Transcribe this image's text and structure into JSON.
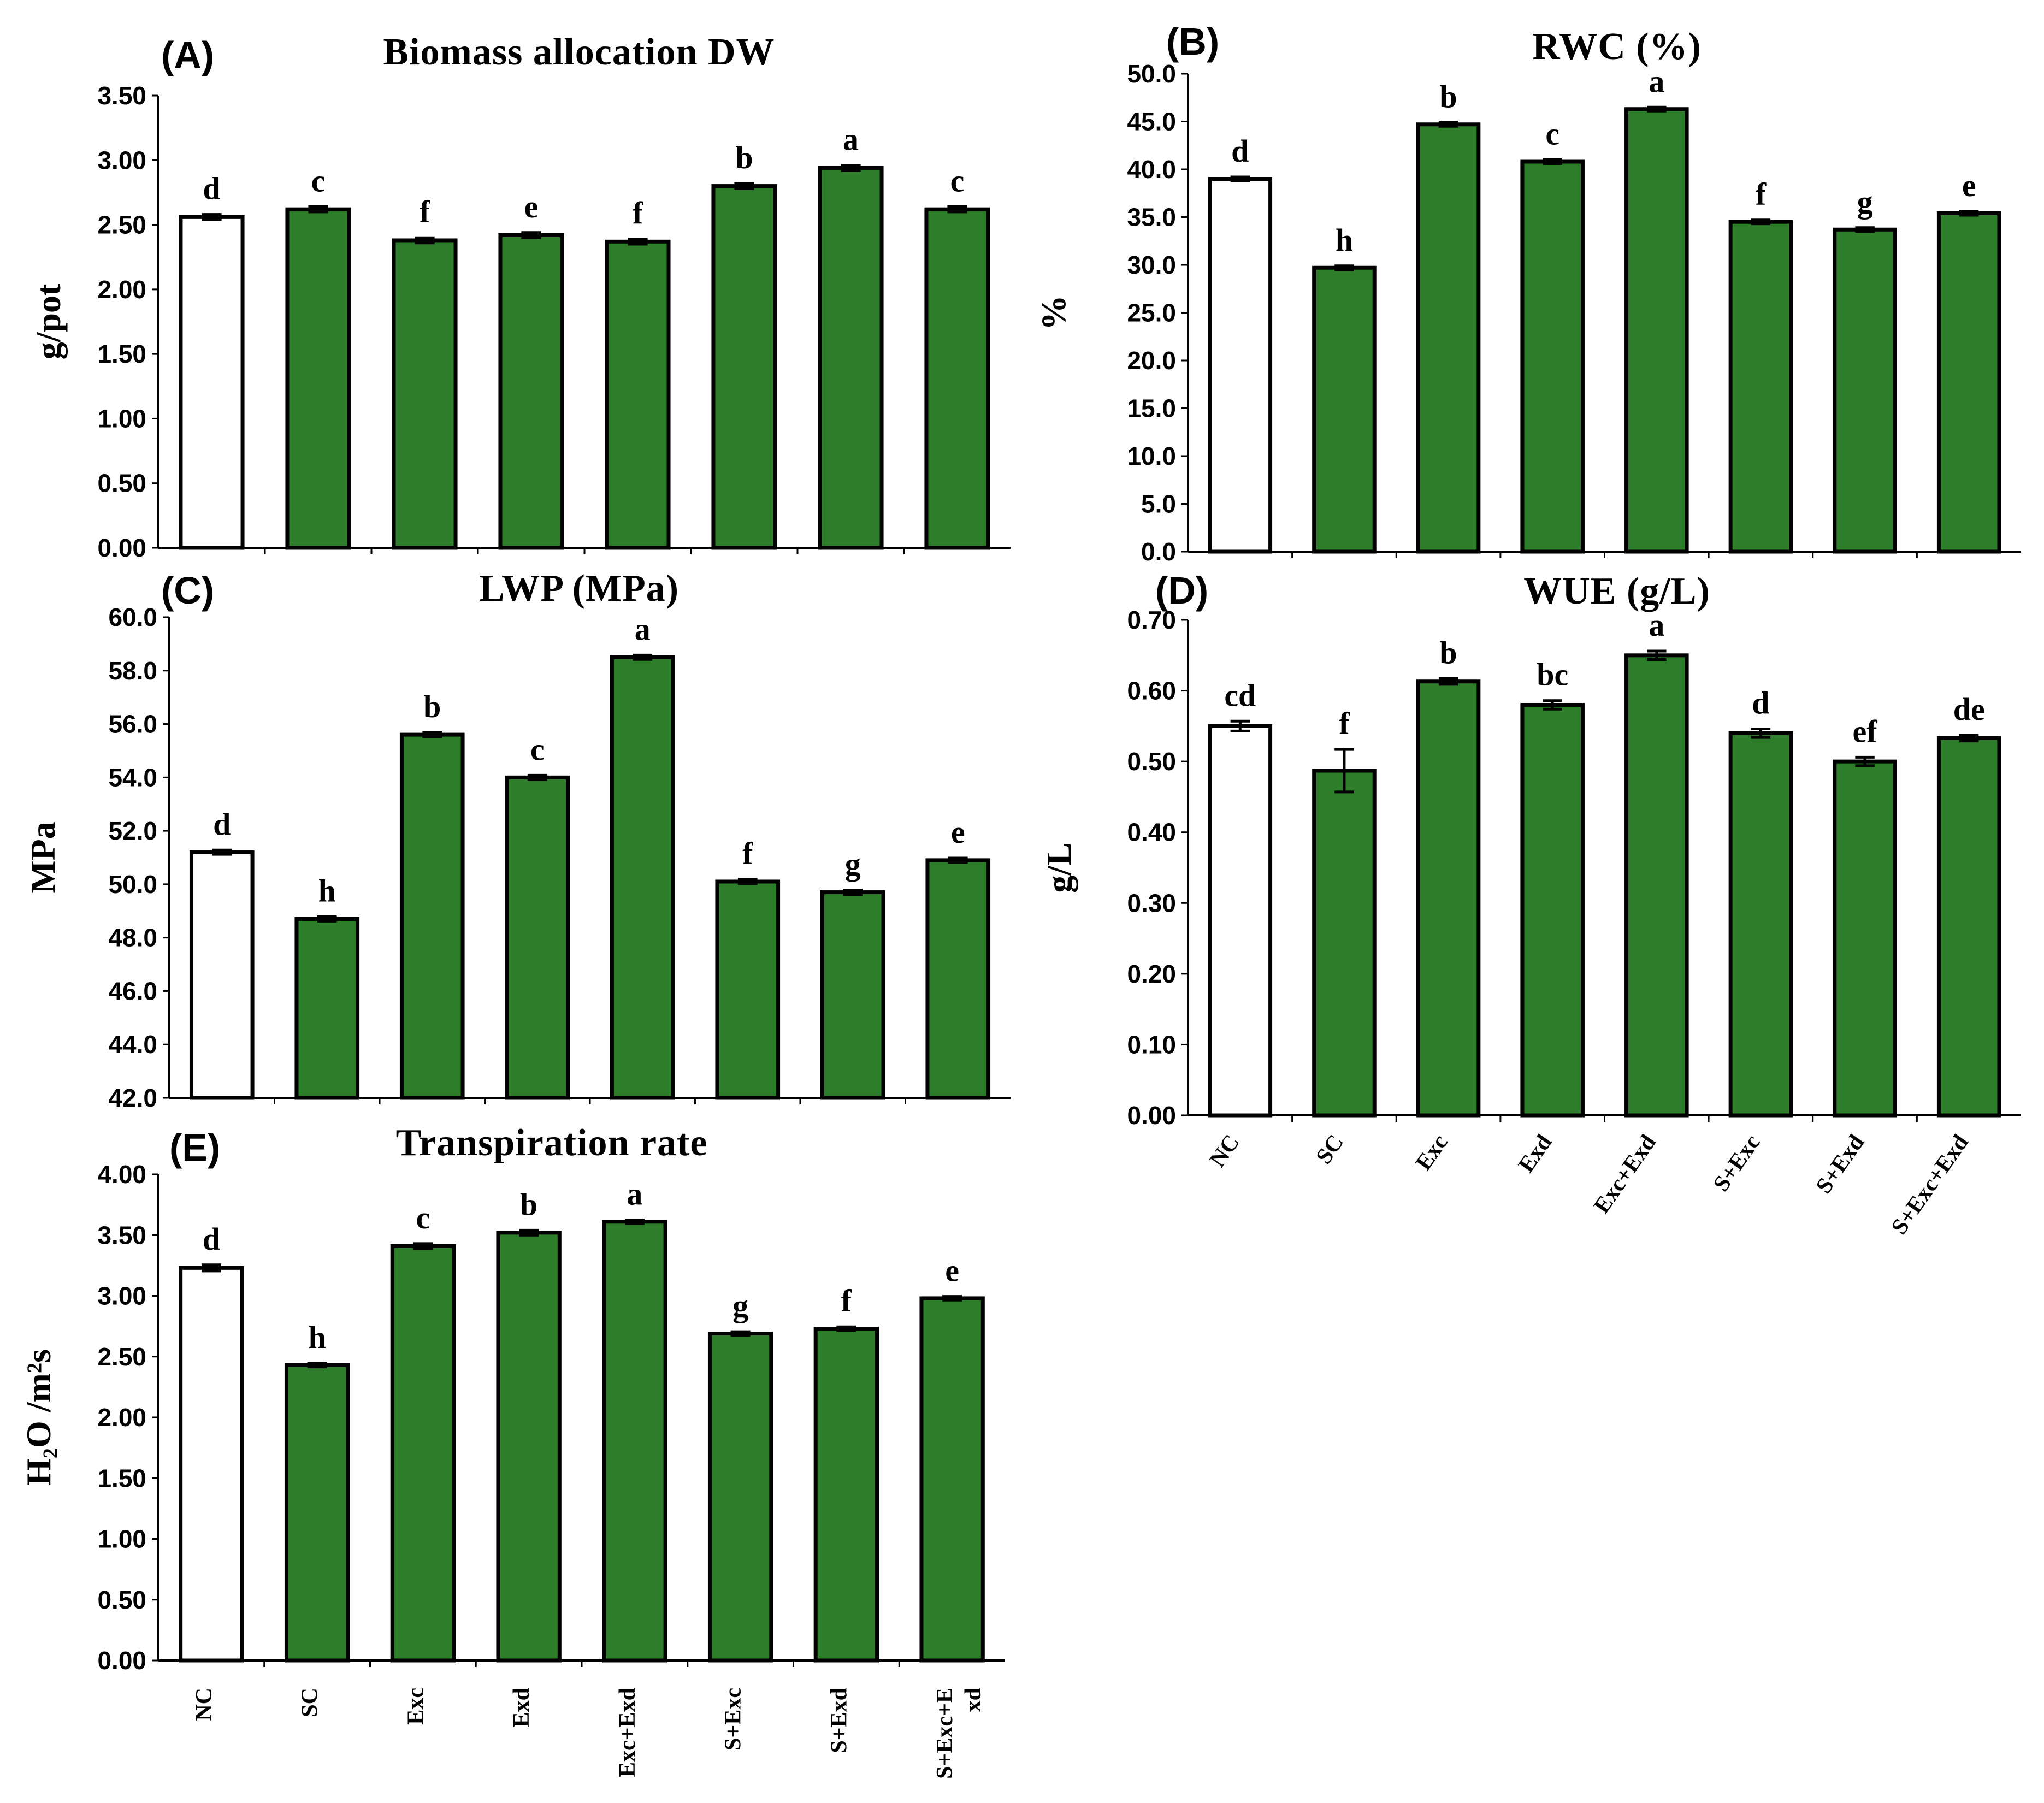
{
  "chart_data": [
    {
      "id": "A",
      "panel_label": "(A)",
      "type": "bar",
      "title": "Biomass allocation DW",
      "ylabel": "g/pot",
      "ylim": [
        0,
        3.5
      ],
      "yticks": [
        "0.00",
        "0.50",
        "1.00",
        "1.50",
        "2.00",
        "2.50",
        "3.00",
        "3.50"
      ],
      "categories": [
        "NC",
        "SC",
        "Exc",
        "Exd",
        "Exc+Exd",
        "S+Exc",
        "S+Exd",
        "S+Exc+Exd"
      ],
      "show_xlabels": false,
      "values": [
        2.56,
        2.62,
        2.38,
        2.42,
        2.37,
        2.8,
        2.94,
        2.62
      ],
      "errors": [
        0.02,
        0.02,
        0.02,
        0.02,
        0.02,
        0.02,
        0.02,
        0.02
      ],
      "letters": [
        "d",
        "c",
        "f",
        "e",
        "f",
        "b",
        "a",
        "c"
      ],
      "bar_colors": [
        "#ffffff",
        "#2e7d2a",
        "#2e7d2a",
        "#2e7d2a",
        "#2e7d2a",
        "#2e7d2a",
        "#2e7d2a",
        "#2e7d2a"
      ]
    },
    {
      "id": "B",
      "panel_label": "(B)",
      "type": "bar",
      "title": "RWC (%)",
      "ylabel": "%",
      "ylim": [
        0,
        50
      ],
      "yticks": [
        "0.0",
        "5.0",
        "10.0",
        "15.0",
        "20.0",
        "25.0",
        "30.0",
        "35.0",
        "40.0",
        "45.0",
        "50.0"
      ],
      "categories": [
        "NC",
        "SC",
        "Exc",
        "Exd",
        "Exc+Exd",
        "S+Exc",
        "S+Exd",
        "S+Exc+Exd"
      ],
      "show_xlabels": false,
      "values": [
        39.0,
        29.7,
        44.7,
        40.8,
        46.3,
        34.5,
        33.7,
        35.4
      ],
      "errors": [
        0.2,
        0.2,
        0.2,
        0.2,
        0.2,
        0.2,
        0.2,
        0.2
      ],
      "letters": [
        "d",
        "h",
        "b",
        "c",
        "a",
        "f",
        "g",
        "e"
      ],
      "bar_colors": [
        "#ffffff",
        "#2e7d2a",
        "#2e7d2a",
        "#2e7d2a",
        "#2e7d2a",
        "#2e7d2a",
        "#2e7d2a",
        "#2e7d2a"
      ]
    },
    {
      "id": "C",
      "panel_label": "(C)",
      "type": "bar",
      "title": "LWP (MPa)",
      "ylabel": "MPa",
      "ylim": [
        42,
        60
      ],
      "yticks": [
        "42.0",
        "44.0",
        "46.0",
        "48.0",
        "50.0",
        "52.0",
        "54.0",
        "56.0",
        "58.0",
        "60.0"
      ],
      "categories": [
        "NC",
        "SC",
        "Exc",
        "Exd",
        "Exc+Exd",
        "S+Exc",
        "S+Exd",
        "S+Exc+Exd"
      ],
      "show_xlabels": false,
      "values": [
        51.2,
        48.7,
        55.6,
        54.0,
        58.5,
        50.1,
        49.7,
        50.9
      ],
      "errors": [
        0.08,
        0.08,
        0.08,
        0.08,
        0.08,
        0.08,
        0.08,
        0.08
      ],
      "letters": [
        "d",
        "h",
        "b",
        "c",
        "a",
        "f",
        "g",
        "e"
      ],
      "bar_colors": [
        "#ffffff",
        "#2e7d2a",
        "#2e7d2a",
        "#2e7d2a",
        "#2e7d2a",
        "#2e7d2a",
        "#2e7d2a",
        "#2e7d2a"
      ]
    },
    {
      "id": "D",
      "panel_label": "(D)",
      "type": "bar",
      "title": "WUE (g/L)",
      "ylabel": "g/L",
      "ylim": [
        0,
        0.7
      ],
      "yticks": [
        "0.00",
        "0.10",
        "0.20",
        "0.30",
        "0.40",
        "0.50",
        "0.60",
        "0.70"
      ],
      "categories": [
        "NC",
        "SC",
        "Exc",
        "Exd",
        "Exc+Exd",
        "S+Exc",
        "S+Exd",
        "S+Exc+Exd"
      ],
      "show_xlabels": true,
      "values": [
        0.55,
        0.487,
        0.613,
        0.58,
        0.65,
        0.54,
        0.5,
        0.533
      ],
      "errors": [
        0.007,
        0.03,
        0.004,
        0.006,
        0.006,
        0.006,
        0.006,
        0.004
      ],
      "letters": [
        "cd",
        "f",
        "b",
        "bc",
        "a",
        "d",
        "ef",
        "de"
      ],
      "bar_colors": [
        "#ffffff",
        "#2e7d2a",
        "#2e7d2a",
        "#2e7d2a",
        "#2e7d2a",
        "#2e7d2a",
        "#2e7d2a",
        "#2e7d2a"
      ]
    },
    {
      "id": "E",
      "panel_label": "(E)",
      "type": "bar",
      "title": "Transpiration rate",
      "ylabel": "H₂O /m²s",
      "ylim": [
        0,
        4
      ],
      "yticks": [
        "0.00",
        "0.50",
        "1.00",
        "1.50",
        "2.00",
        "2.50",
        "3.00",
        "3.50",
        "4.00"
      ],
      "categories": [
        "NC",
        "SC",
        "Exc",
        "Exd",
        "Exc+Exd",
        "S+Exc",
        "S+Exd",
        "S+Exc+E xd"
      ],
      "show_xlabels": true,
      "values": [
        3.23,
        2.43,
        3.41,
        3.52,
        3.61,
        2.69,
        2.73,
        2.98
      ],
      "errors": [
        0.025,
        0.015,
        0.02,
        0.02,
        0.015,
        0.015,
        0.015,
        0.015
      ],
      "letters": [
        "d",
        "h",
        "c",
        "b",
        "a",
        "g",
        "f",
        "e"
      ],
      "bar_colors": [
        "#ffffff",
        "#2e7d2a",
        "#2e7d2a",
        "#2e7d2a",
        "#2e7d2a",
        "#2e7d2a",
        "#2e7d2a",
        "#2e7d2a"
      ]
    }
  ]
}
